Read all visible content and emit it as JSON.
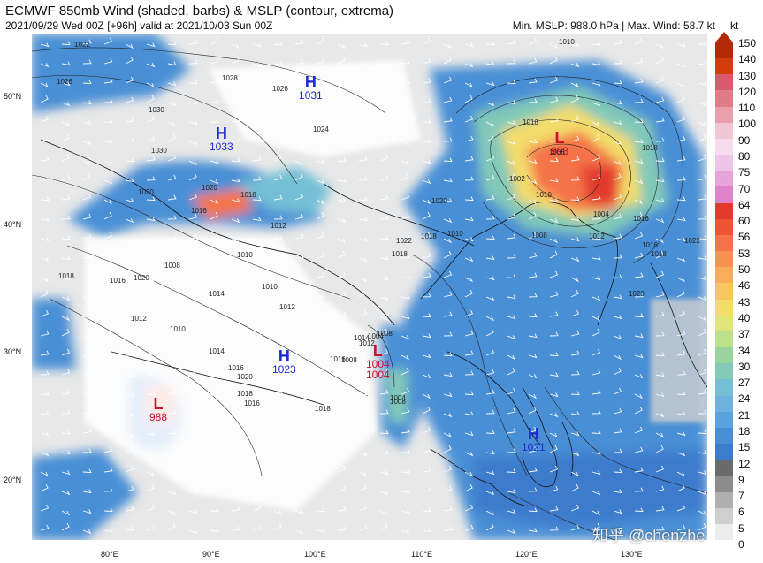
{
  "header": {
    "title": "ECMWF 850mb Wind (shaded, barbs) & MSLP (contour, extrema)",
    "subtitle": "2021/09/29 Wed 00Z [+96h] valid at 2021/10/03 Sun 00Z",
    "stats": "Min. MSLP: 988.0 hPa | Max. Wind: 58.7 kt"
  },
  "lat_labels": [
    "50°N",
    "40°N",
    "30°N",
    "20°N"
  ],
  "lon_labels": [
    "80°E",
    "90°E",
    "100°E",
    "110°E",
    "120°E",
    "130°E"
  ],
  "colorbar": {
    "unit": "kt",
    "labels": [
      "150",
      "140",
      "130",
      "120",
      "110",
      "100",
      "90",
      "80",
      "75",
      "70",
      "64",
      "60",
      "56",
      "53",
      "50",
      "46",
      "43",
      "40",
      "37",
      "34",
      "30",
      "27",
      "24",
      "21",
      "18",
      "15",
      "12",
      "9",
      "7",
      "6",
      "5",
      "0"
    ],
    "colors": [
      "#b22a05",
      "#d23d0b",
      "#d85a6e",
      "#e07c88",
      "#e9a0ac",
      "#f1c5d3",
      "#f6dcec",
      "#eec3e8",
      "#e7a4d9",
      "#df84cb",
      "#e23b2d",
      "#f05533",
      "#f5734a",
      "#f89252",
      "#f9ad5c",
      "#f7c660",
      "#f3dc6a",
      "#dfe57a",
      "#bde08a",
      "#9bd39f",
      "#82c9b8",
      "#74bfd6",
      "#6fb2e0",
      "#5ba3df",
      "#4a8fd5",
      "#3c7ccc",
      "#6a6a6a",
      "#8c8c8c",
      "#b0b0b0",
      "#cfcfcf",
      "#ececec"
    ]
  },
  "pressure_systems": [
    {
      "type": "H",
      "letter": "H",
      "value": "1031"
    },
    {
      "type": "H",
      "letter": "H",
      "value": "1033"
    },
    {
      "type": "L",
      "letter": "L",
      "value": "998"
    },
    {
      "type": "H",
      "letter": "H",
      "value": "1023"
    },
    {
      "type": "L",
      "letter": "L",
      "value": "1004"
    },
    {
      "type": "L",
      "letter": "L",
      "value": "988"
    },
    {
      "type": "H",
      "letter": "H",
      "value": "1021"
    }
  ],
  "extra_labels": {
    "low_1004_second": "1004"
  },
  "isobar_labels": [
    "1022",
    "1026",
    "1028",
    "1026",
    "1030",
    "1030",
    "1024",
    "1020",
    "1018",
    "1020",
    "1016",
    "1012",
    "1010",
    "1008",
    "1018",
    "1016",
    "1020",
    "1014",
    "1012",
    "1010",
    "1014",
    "1016",
    "1020",
    "1018",
    "1004",
    "1008",
    "1004",
    "1012",
    "1016",
    "1018",
    "1010",
    "1014",
    "1020",
    "1022",
    "1018",
    "1010",
    "1008",
    "1008",
    "1012",
    "1016",
    "1018",
    "1002",
    "1004",
    "1008",
    "1010",
    "1012",
    "1016",
    "1018",
    "1022",
    "1020",
    "1016",
    "1018",
    "1006",
    "1018",
    "1010"
  ],
  "watermark": "知乎 @chenzhe"
}
